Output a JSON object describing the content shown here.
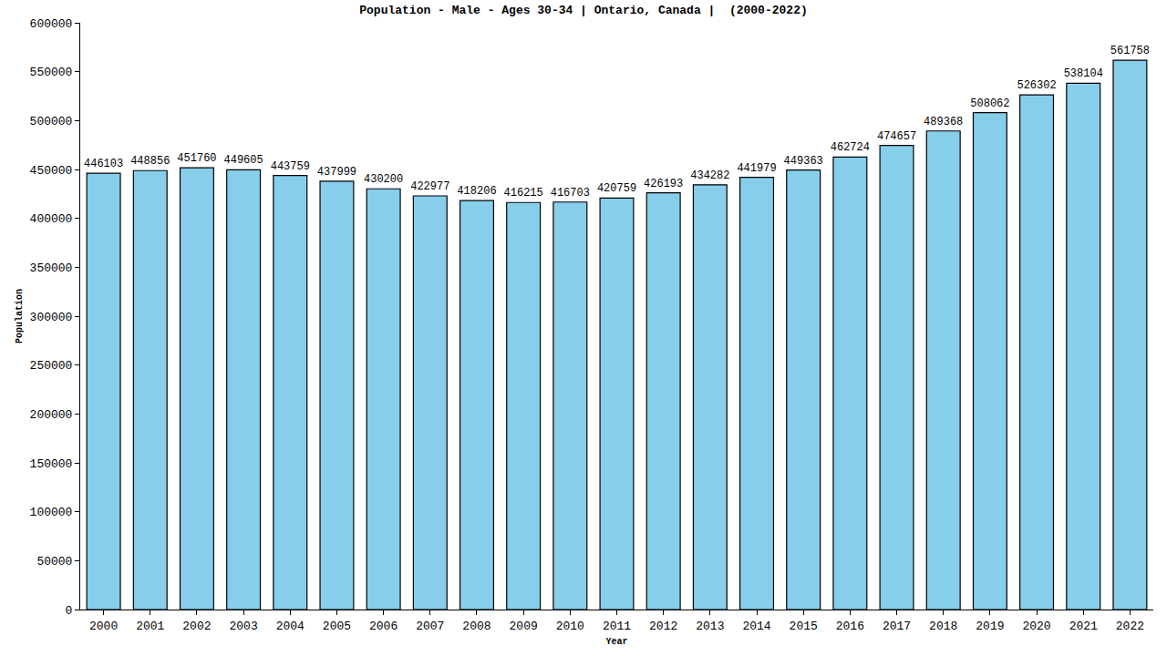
{
  "chart_data": {
    "type": "bar",
    "title": "Population - Male - Ages 30-34 | Ontario, Canada |  (2000-2022)",
    "x_label": "Year",
    "y_label": "Population",
    "categories": [
      "2000",
      "2001",
      "2002",
      "2003",
      "2004",
      "2005",
      "2006",
      "2007",
      "2008",
      "2009",
      "2010",
      "2011",
      "2012",
      "2013",
      "2014",
      "2015",
      "2016",
      "2017",
      "2018",
      "2019",
      "2020",
      "2021",
      "2022"
    ],
    "values": [
      446103,
      448856,
      451760,
      449605,
      443759,
      437999,
      430200,
      422977,
      418206,
      416215,
      416703,
      420759,
      426193,
      434282,
      441979,
      449363,
      462724,
      474657,
      489368,
      508062,
      526302,
      538104,
      561758
    ],
    "color": "#87ceeb",
    "ylim": [
      0,
      600000
    ],
    "yticks": [
      0,
      50000,
      100000,
      150000,
      200000,
      250000,
      300000,
      350000,
      400000,
      450000,
      500000,
      550000,
      600000
    ],
    "grid": false,
    "data_labels": true
  }
}
